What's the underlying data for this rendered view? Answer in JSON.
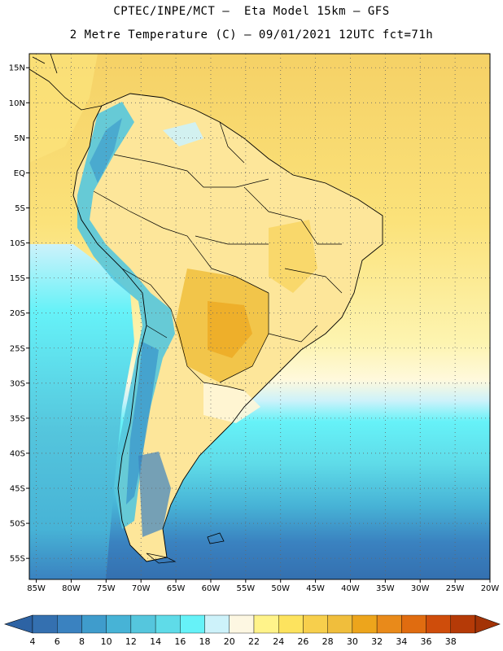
{
  "header": {
    "line1": "CPTEC/INPE/MCT –  Eta Model 15km – GFS",
    "line2": "2 Metre Temperature (C) – 09/01/2021 12UTC fct=71h"
  },
  "map": {
    "lon_range": [
      -86,
      -20
    ],
    "lat_range": [
      -58,
      17
    ],
    "lon_ticks": [
      "85W",
      "80W",
      "75W",
      "70W",
      "65W",
      "60W",
      "55W",
      "50W",
      "45W",
      "40W",
      "35W",
      "30W",
      "25W",
      "20W"
    ],
    "lat_ticks": [
      "15N",
      "10N",
      "5N",
      "EQ",
      "5S",
      "10S",
      "15S",
      "20S",
      "25S",
      "30S",
      "35S",
      "40S",
      "45S",
      "50S",
      "55S"
    ],
    "grid": "dotted"
  },
  "colorbar": {
    "labels": [
      "4",
      "6",
      "8",
      "10",
      "12",
      "14",
      "16",
      "18",
      "20",
      "22",
      "24",
      "26",
      "28",
      "30",
      "32",
      "34",
      "36",
      "38"
    ],
    "colors": [
      "#3470b0",
      "#3a82c0",
      "#3f9ccc",
      "#47b3d6",
      "#55c6dd",
      "#5fdbe8",
      "#66f2f8",
      "#cdf2fa",
      "#fdf7e2",
      "#fff38a",
      "#fde35e",
      "#f7cf4c",
      "#f0be3c",
      "#eda51c",
      "#e98a1a",
      "#e06c10",
      "#cf4d0b",
      "#b53a07"
    ],
    "under_color": "#2d63a4",
    "over_color": "#a33306"
  }
}
